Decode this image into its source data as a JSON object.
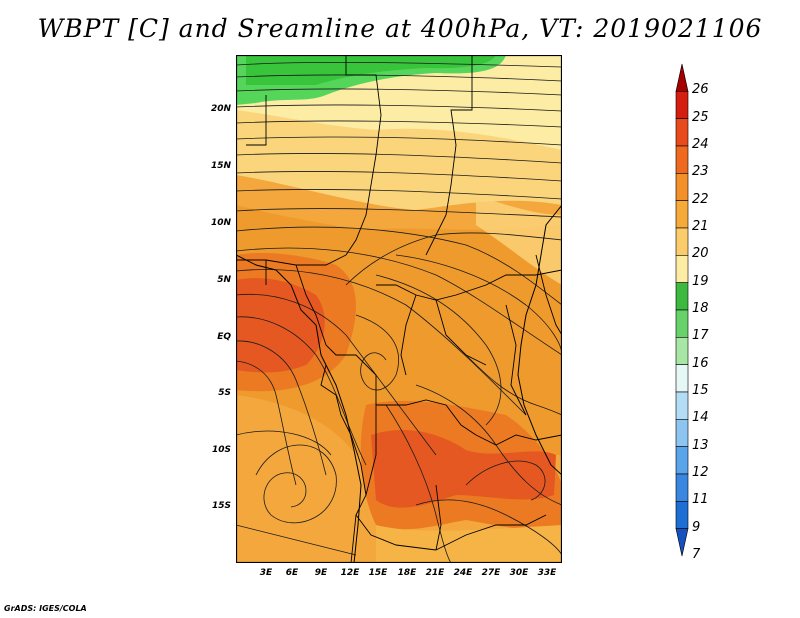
{
  "title": "WBPT [C] and Sreamline at 400hPa, VT: 2019021106",
  "credit": "GrADS: IGES/COLA",
  "map": {
    "lat_labels": [
      "20N",
      "15N",
      "10N",
      "5N",
      "EQ",
      "5S",
      "10S",
      "15S"
    ],
    "lon_labels": [
      "3E",
      "6E",
      "9E",
      "12E",
      "15E",
      "18E",
      "21E",
      "24E",
      "27E",
      "30E",
      "33E"
    ],
    "colors": {
      "green_dark": "#38c43b",
      "green_mid": "#55d65a",
      "yellow_light": "#fdeca4",
      "yellow": "#fbd57c",
      "orange_light": "#f6b447",
      "orange": "#ef9a2c",
      "orange_dark": "#eb7a22",
      "red_orange": "#e55821"
    }
  },
  "colorbar": {
    "labels": [
      "26",
      "25",
      "24",
      "23",
      "22",
      "21",
      "20",
      "19",
      "18",
      "17",
      "16",
      "15",
      "14",
      "13",
      "12",
      "11",
      "9",
      "7"
    ],
    "colors": [
      "#a50000",
      "#d41f10",
      "#e94a1c",
      "#ef6a1f",
      "#f3902a",
      "#f6aa3a",
      "#fbcd6a",
      "#fdeda4",
      "#3cb93e",
      "#67d26a",
      "#a8e6a6",
      "#e6f8f6",
      "#b3dcf5",
      "#8ec4f0",
      "#5aa4ea",
      "#3a87e0",
      "#1e6ed4",
      "#1450c0"
    ]
  }
}
